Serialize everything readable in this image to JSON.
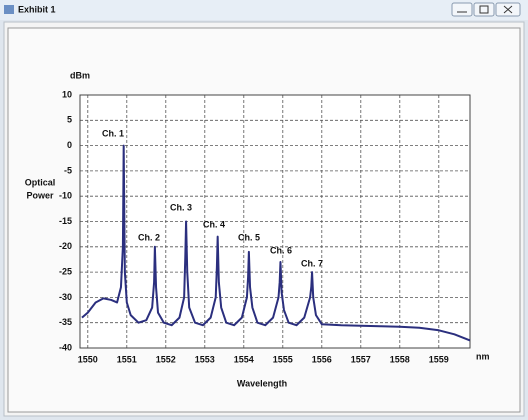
{
  "window": {
    "title": "Exhibit 1"
  },
  "chart_data": {
    "type": "line",
    "xlabel": "Wavelength",
    "xunit": "nm",
    "yunit": "dBm",
    "ylabel": [
      "Optical",
      "Power"
    ],
    "x": [
      1549.85,
      1550.0,
      1550.2,
      1550.4,
      1550.6,
      1550.75,
      1550.85,
      1550.9,
      1550.92,
      1550.95,
      1551.0,
      1551.1,
      1551.3,
      1551.5,
      1551.65,
      1551.7,
      1551.72,
      1551.75,
      1551.8,
      1551.95,
      1552.15,
      1552.35,
      1552.47,
      1552.5,
      1552.52,
      1552.55,
      1552.6,
      1552.75,
      1552.95,
      1553.15,
      1553.28,
      1553.31,
      1553.33,
      1553.36,
      1553.42,
      1553.55,
      1553.75,
      1553.95,
      1554.08,
      1554.11,
      1554.13,
      1554.16,
      1554.22,
      1554.35,
      1554.55,
      1554.75,
      1554.89,
      1554.92,
      1554.94,
      1554.97,
      1555.03,
      1555.15,
      1555.35,
      1555.55,
      1555.7,
      1555.73,
      1555.75,
      1555.78,
      1555.85,
      1556.0,
      1556.5,
      1557.0,
      1557.5,
      1558.0,
      1558.5,
      1559.0,
      1559.4,
      1559.8
    ],
    "values": [
      -34,
      -33,
      -31,
      -30.2,
      -30.5,
      -31,
      -28,
      -20,
      0,
      -25,
      -31,
      -33.5,
      -35,
      -34.5,
      -32,
      -27,
      -20,
      -28,
      -33,
      -35,
      -35.5,
      -34,
      -30,
      -22,
      -15,
      -25,
      -32,
      -35,
      -35.5,
      -34,
      -30,
      -24,
      -18,
      -27,
      -32,
      -35,
      -35.5,
      -34,
      -30,
      -26,
      -21,
      -28,
      -32,
      -35,
      -35.5,
      -34,
      -30,
      -27,
      -23,
      -29,
      -32.5,
      -35,
      -35.5,
      -34,
      -30,
      -28,
      -25,
      -30,
      -33.5,
      -35.3,
      -35.5,
      -35.6,
      -35.7,
      -35.8,
      -36,
      -36.5,
      -37.3,
      -38.5
    ],
    "color": "#2b2f7e",
    "annotations": [
      "Ch. 1",
      "Ch. 2",
      "Ch. 3",
      "Ch. 4",
      "Ch. 5",
      "Ch. 6",
      "Ch. 7"
    ],
    "xlim": [
      1549.8,
      1559.8
    ],
    "ylim": [
      -40,
      10
    ],
    "xticks": [
      1550,
      1551,
      1552,
      1553,
      1554,
      1555,
      1556,
      1557,
      1558,
      1559
    ],
    "yticks": [
      -40,
      -35,
      -30,
      -25,
      -20,
      -15,
      -10,
      -5,
      0,
      5,
      10
    ],
    "grid": true
  }
}
